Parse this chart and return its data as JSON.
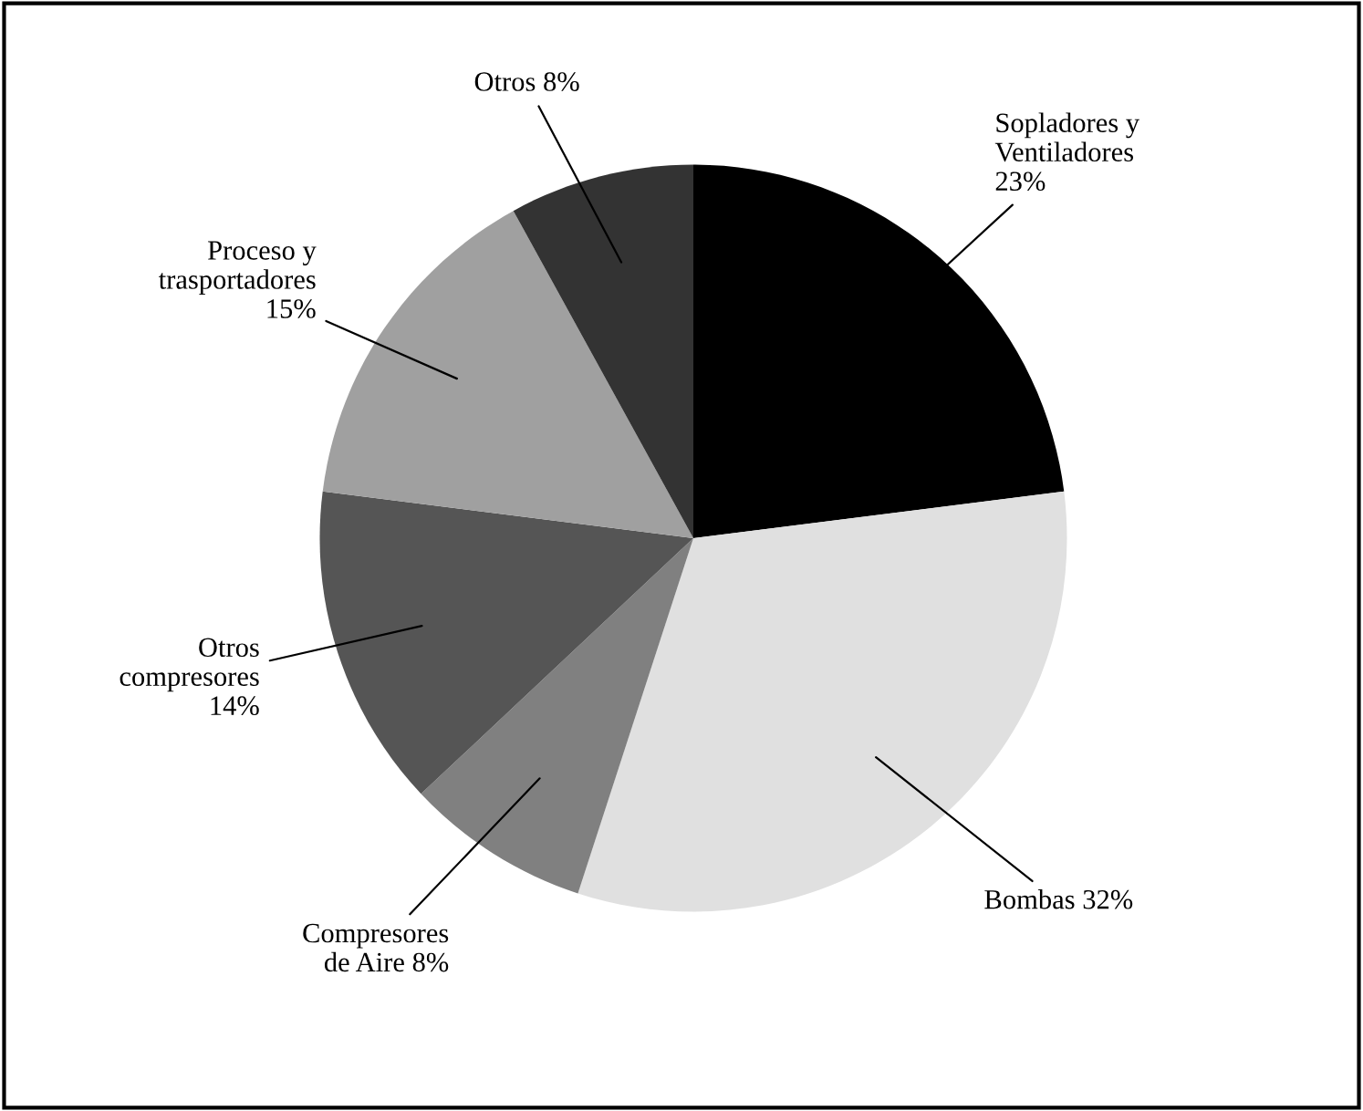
{
  "chart_data": {
    "type": "pie",
    "categories": [
      "Sopladores y\nVentiladores\n23%",
      "Bombas 32%",
      "Compresores\nde Aire 8%",
      "Otros\ncompresores\n14%",
      "Proceso y\ntrasportadores\n15%",
      "Otros 8%"
    ],
    "values": [
      23,
      32,
      8,
      14,
      15,
      8
    ],
    "colors": [
      "#000000",
      "#e0e0e0",
      "#808080",
      "#555555",
      "#a0a0a0",
      "#333333"
    ],
    "legend": false
  }
}
